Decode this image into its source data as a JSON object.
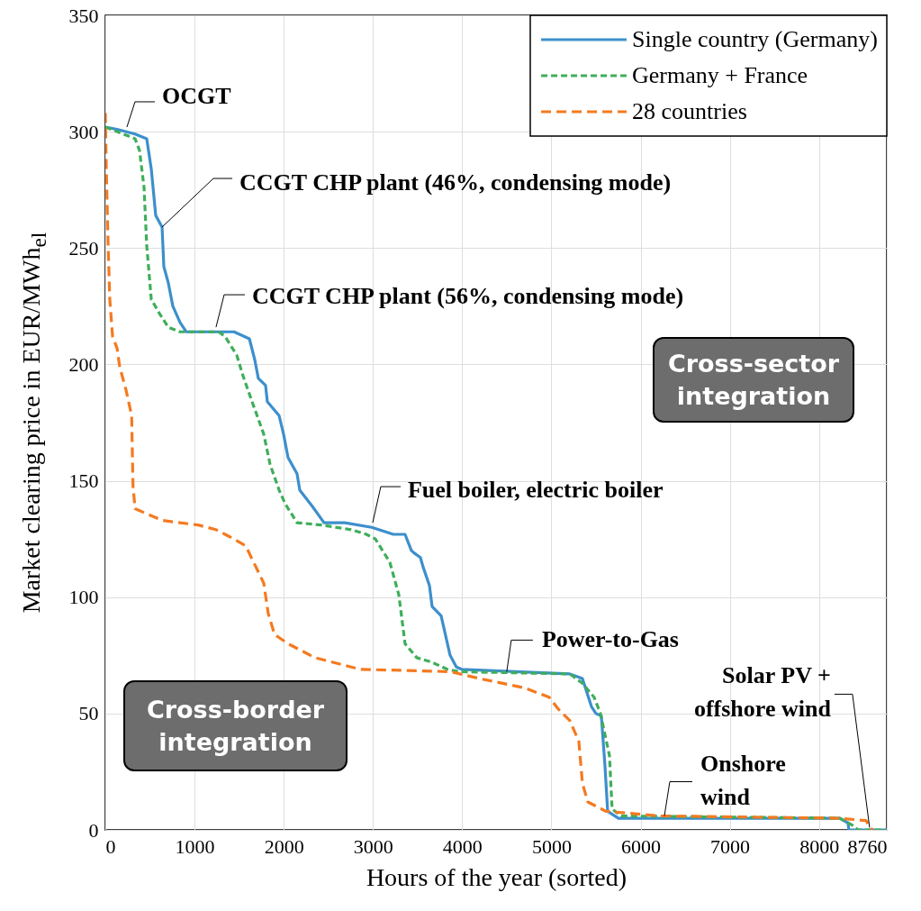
{
  "chart_data": {
    "type": "line",
    "xlabel": "Hours of the year (sorted)",
    "ylabel": "Market clearing price in EUR/MWh$_{el}$",
    "xlim": [
      0,
      8760
    ],
    "xticks": [
      0,
      1000,
      2000,
      3000,
      4000,
      5000,
      6000,
      7000,
      8000,
      8760
    ],
    "ylim": [
      0,
      350
    ],
    "yticks": [
      0,
      50,
      100,
      150,
      200,
      250,
      300,
      350
    ],
    "grid": true,
    "legend": "top right",
    "series": [
      {
        "name": "Single country (Germany)",
        "color": "#3d8fcc",
        "line_style": "solid",
        "x": [
          0,
          131,
          333,
          464,
          515,
          565,
          636,
          656,
          706,
          757,
          838,
          908,
          1443,
          1615,
          1675,
          1715,
          1796,
          1816,
          1948,
          1998,
          2048,
          2149,
          2180,
          2321,
          2452,
          2684,
          2987,
          3229,
          3360,
          3431,
          3461,
          3532,
          3562,
          3633,
          3663,
          3764,
          3865,
          3935,
          3996,
          5207,
          5348,
          5449,
          5500,
          5560,
          5600,
          5631,
          5752,
          8234,
          8325,
          8335,
          8760
        ],
        "values": [
          302,
          301,
          299,
          297,
          284,
          264,
          259,
          242,
          235,
          225,
          218,
          214,
          214,
          211,
          202,
          194,
          191,
          184,
          178,
          170,
          160,
          153,
          146,
          139,
          132,
          132,
          130,
          127,
          127,
          120,
          119,
          117,
          113,
          105,
          96,
          92,
          75,
          70,
          69,
          67,
          65,
          53,
          50,
          49,
          28,
          8,
          5,
          5,
          3,
          0,
          0
        ]
      },
      {
        "name": "Germany + France",
        "color": "#3fae5a",
        "line_style": "dashed",
        "x": [
          0,
          333,
          383,
          434,
          464,
          515,
          605,
          706,
          838,
          1271,
          1342,
          1473,
          1544,
          1645,
          1776,
          1847,
          1948,
          2018,
          2149,
          2422,
          2755,
          2926,
          3027,
          3189,
          3290,
          3360,
          3491,
          3663,
          3834,
          3966,
          5207,
          5348,
          5479,
          5550,
          5651,
          5681,
          5782,
          8234,
          8375,
          8436,
          8760
        ],
        "values": [
          302,
          297,
          292,
          276,
          251,
          228,
          222,
          216,
          214,
          214,
          212,
          204,
          195,
          184,
          170,
          157,
          146,
          140,
          132,
          131,
          129,
          127,
          125,
          115,
          101,
          80,
          74,
          72,
          69,
          68,
          67,
          63,
          57,
          50,
          32,
          9,
          6,
          5,
          2,
          0,
          0
        ]
      },
      {
        "name": "28 countries",
        "color": "#f47a20",
        "line_style": "dashed",
        "x": [
          0,
          10,
          30,
          50,
          81,
          131,
          161,
          232,
          295,
          310,
          333,
          636,
          1040,
          1240,
          1342,
          1443,
          1574,
          1675,
          1776,
          1826,
          1897,
          2048,
          2351,
          2856,
          3865,
          4198,
          4702,
          4975,
          5076,
          5207,
          5308,
          5348,
          5409,
          5611,
          6216,
          8234,
          8527,
          8577,
          8600
        ],
        "values": [
          308,
          286,
          253,
          228,
          212,
          207,
          199,
          189,
          178,
          148,
          138,
          133,
          131,
          129,
          127,
          125,
          122,
          114,
          106,
          93,
          84,
          80,
          74,
          69,
          68,
          65,
          61,
          57,
          52,
          47,
          38,
          20,
          12,
          8,
          6,
          5,
          4,
          1,
          0
        ]
      }
    ],
    "annotations": [
      {
        "text": "OCGT",
        "x": 242,
        "y": 302
      },
      {
        "text": "CCGT CHP plant (46%, condensing mode)",
        "x": 636,
        "y": 259
      },
      {
        "text": "CCGT CHP plant (56%, condensing mode)",
        "x": 1241,
        "y": 216
      },
      "Cross-sector integration",
      {
        "text": "Fuel boiler, electric boiler",
        "x": 2997,
        "y": 132
      },
      {
        "text": "Power-to-Gas",
        "x": 4500,
        "y": 68
      },
      {
        "text": "Solar PV + offshore wind",
        "x": 8567,
        "y": 1
      },
      "Cross-border integration",
      {
        "text": "Onshore wind",
        "x": 6267,
        "y": 6
      }
    ]
  }
}
